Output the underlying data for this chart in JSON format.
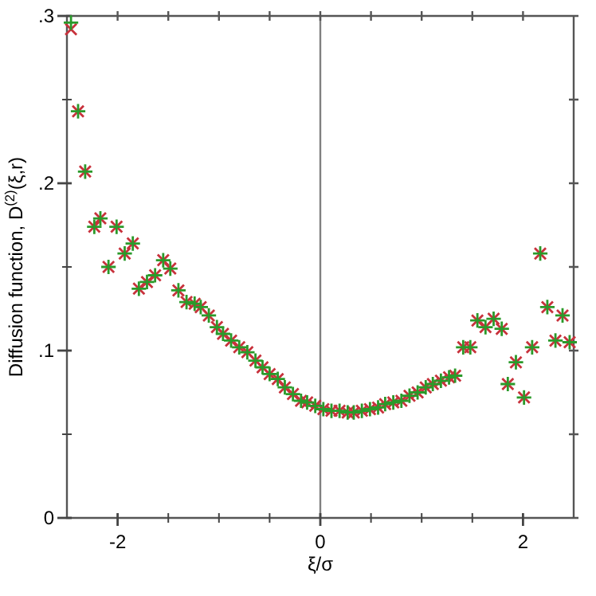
{
  "chart_data": {
    "type": "scatter",
    "xlabel": "ξ/σ",
    "ylabel": "Diffusion function, D$^{(2)}$(ξ,r)",
    "x": [
      -2.46,
      -2.39,
      -2.32,
      -2.23,
      -2.17,
      -2.09,
      -2.01,
      -1.93,
      -1.85,
      -1.79,
      -1.71,
      -1.63,
      -1.55,
      -1.48,
      -1.4,
      -1.32,
      -1.24,
      -1.18,
      -1.1,
      -1.02,
      -0.96,
      -0.88,
      -0.8,
      -0.72,
      -0.64,
      -0.57,
      -0.5,
      -0.42,
      -0.35,
      -0.27,
      -0.19,
      -0.13,
      -0.05,
      0.03,
      0.11,
      0.19,
      0.27,
      0.33,
      0.41,
      0.49,
      0.57,
      0.64,
      0.72,
      0.8,
      0.88,
      0.96,
      1.04,
      1.11,
      1.19,
      1.27,
      1.33,
      1.41,
      1.48,
      1.55,
      1.63,
      1.71,
      1.79,
      1.85,
      1.93,
      2.01,
      2.09,
      2.17,
      2.24,
      2.32,
      2.39,
      2.46
    ],
    "series": [
      {
        "color": "#c8323c",
        "values": [
          0.292,
          0.243,
          0.207,
          0.174,
          0.179,
          0.15,
          0.174,
          0.158,
          0.164,
          0.137,
          0.141,
          0.145,
          0.154,
          0.149,
          0.136,
          0.129,
          0.128,
          0.126,
          0.121,
          0.114,
          0.11,
          0.106,
          0.102,
          0.099,
          0.094,
          0.09,
          0.086,
          0.083,
          0.078,
          0.074,
          0.07,
          0.069,
          0.067,
          0.065,
          0.064,
          0.064,
          0.063,
          0.063,
          0.064,
          0.065,
          0.066,
          0.068,
          0.069,
          0.07,
          0.073,
          0.075,
          0.078,
          0.08,
          0.082,
          0.084,
          0.085,
          0.102,
          0.102,
          0.118,
          0.114,
          0.119,
          0.113,
          0.08,
          0.093,
          0.072,
          0.102,
          0.158,
          0.126,
          0.106,
          0.121,
          0.105
        ]
      },
      {
        "color": "#2a9a2a",
        "values": [
          0.296,
          0.243,
          0.207,
          0.174,
          0.179,
          0.15,
          0.174,
          0.158,
          0.164,
          0.137,
          0.141,
          0.145,
          0.154,
          0.149,
          0.136,
          0.129,
          0.128,
          0.126,
          0.121,
          0.114,
          0.11,
          0.106,
          0.102,
          0.099,
          0.094,
          0.09,
          0.086,
          0.083,
          0.078,
          0.074,
          0.07,
          0.069,
          0.067,
          0.065,
          0.064,
          0.064,
          0.063,
          0.063,
          0.064,
          0.065,
          0.066,
          0.068,
          0.069,
          0.07,
          0.073,
          0.075,
          0.078,
          0.08,
          0.082,
          0.084,
          0.085,
          0.102,
          0.102,
          0.118,
          0.114,
          0.119,
          0.113,
          0.08,
          0.093,
          0.072,
          0.102,
          0.158,
          0.126,
          0.106,
          0.121,
          0.105
        ]
      }
    ],
    "marker": "cross",
    "xlim": [
      -2.5,
      2.5
    ],
    "xticks": [
      -2,
      {
        "value": -1.5,
        "label": null
      },
      {
        "value": -1,
        "label": null
      },
      {
        "value": -0.5,
        "label": null
      },
      0,
      {
        "value": 0.5,
        "label": null
      },
      {
        "value": 1,
        "label": null
      },
      {
        "value": 1.5,
        "label": null
      },
      2
    ],
    "ylim": [
      0,
      0.3
    ],
    "yticks": [
      0,
      {
        "value": 0.05,
        "label": null
      },
      {
        "value": 0.1,
        "label": ".1"
      },
      {
        "value": 0.15,
        "label": null
      },
      {
        "value": 0.2,
        "label": ".2"
      },
      {
        "value": 0.25,
        "label": null
      },
      {
        "value": 0.3,
        "label": ".3"
      }
    ],
    "ref_lines": [
      {
        "axis": "x",
        "value": 0,
        "color": "#808080"
      }
    ]
  }
}
